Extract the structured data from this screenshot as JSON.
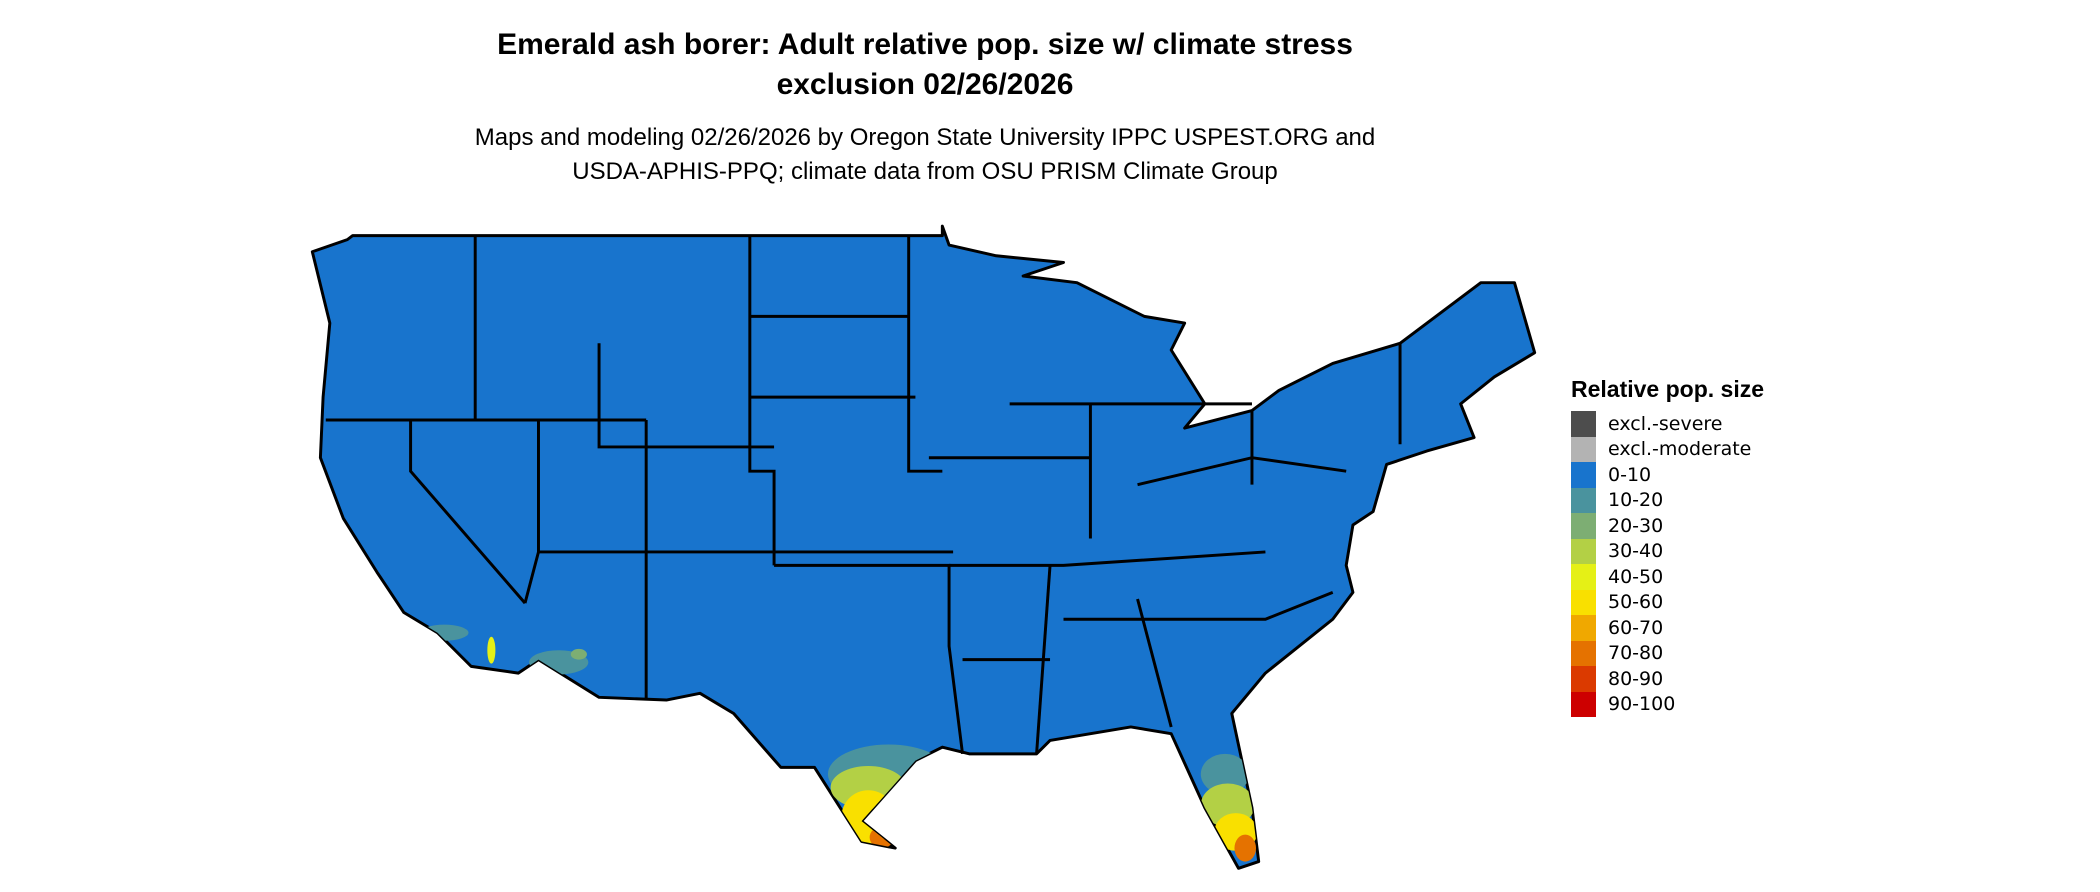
{
  "title_line1": "Emerald ash borer: Adult relative pop. size w/ climate stress",
  "title_line2": "exclusion 02/26/2026",
  "subtitle_line1": "Maps and modeling 02/26/2026 by Oregon State University IPPC USPEST.ORG and",
  "subtitle_line2": "USDA-APHIS-PPQ; climate data from OSU PRISM Climate Group",
  "map": {
    "region": "Contiguous United States",
    "base_color": "#1874CD",
    "border_color": "#000000"
  },
  "legend": {
    "title": "Relative pop. size",
    "entries": [
      {
        "label": "excl.-severe",
        "color": "#4D4D4D"
      },
      {
        "label": "excl.-moderate",
        "color": "#B3B3B3"
      },
      {
        "label": "0-10",
        "color": "#1874CD"
      },
      {
        "label": "10-20",
        "color": "#4A939E"
      },
      {
        "label": "20-30",
        "color": "#7DAE73"
      },
      {
        "label": "30-40",
        "color": "#B3D045"
      },
      {
        "label": "40-50",
        "color": "#E5F016"
      },
      {
        "label": "50-60",
        "color": "#F9E000"
      },
      {
        "label": "60-70",
        "color": "#F0A800"
      },
      {
        "label": "70-80",
        "color": "#E57200"
      },
      {
        "label": "80-90",
        "color": "#DB3A00"
      },
      {
        "label": "90-100",
        "color": "#CD0000"
      }
    ]
  }
}
